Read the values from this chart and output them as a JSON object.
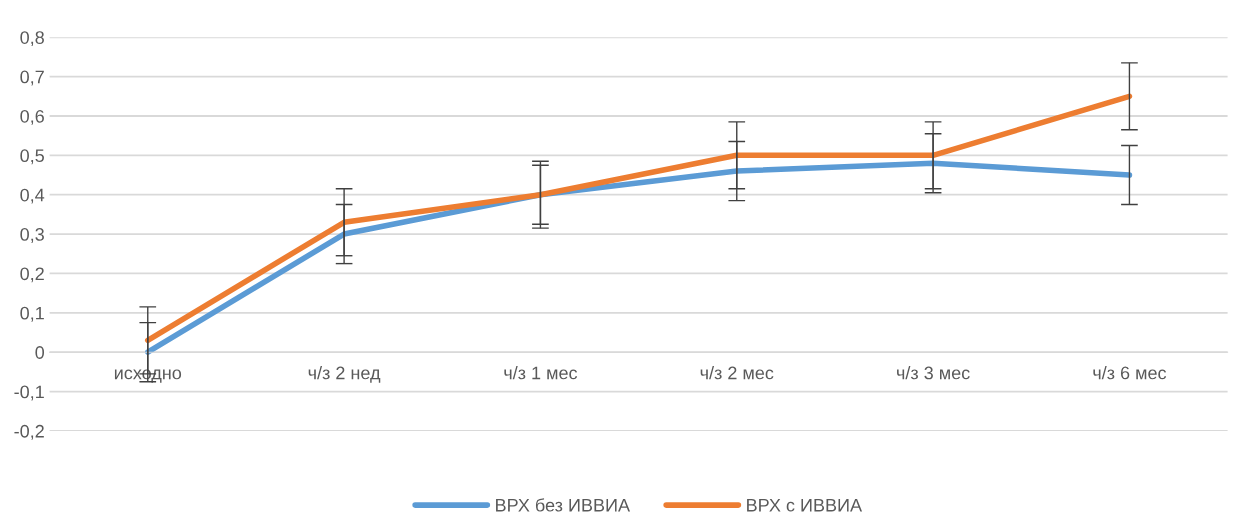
{
  "chart_data": {
    "type": "line",
    "categories": [
      "исходно",
      "ч/з 2 нед",
      "ч/з 1 мес",
      "ч/з 2 мес",
      "ч/з 3 мес",
      "ч/з 6 мес"
    ],
    "series": [
      {
        "name": "ВРХ без ИВВИА",
        "color": "#5b9bd5",
        "values": [
          0,
          0.3,
          0.4,
          0.46,
          0.48,
          0.45
        ],
        "errors": [
          0.075,
          0.075,
          0.075,
          0.075,
          0.075,
          0.075
        ]
      },
      {
        "name": "ВРХ с ИВВИА",
        "color": "#ed7d31",
        "values": [
          0.03,
          0.33,
          0.4,
          0.5,
          0.5,
          0.65
        ],
        "errors": [
          0.085,
          0.085,
          0.085,
          0.085,
          0.085,
          0.085
        ]
      }
    ],
    "ylim": [
      -0.2,
      0.8
    ],
    "yticks": [
      {
        "value": -0.2,
        "label": "-0,2"
      },
      {
        "value": -0.1,
        "label": "-0,1"
      },
      {
        "value": 0,
        "label": "0"
      },
      {
        "value": 0.1,
        "label": "0,1"
      },
      {
        "value": 0.2,
        "label": "0,2"
      },
      {
        "value": 0.3,
        "label": "0,3"
      },
      {
        "value": 0.4,
        "label": "0,4"
      },
      {
        "value": 0.5,
        "label": "0,5"
      },
      {
        "value": 0.6,
        "label": "0,6"
      },
      {
        "value": 0.7,
        "label": "0,7"
      },
      {
        "value": 0.8,
        "label": "0,8"
      }
    ],
    "grid": "y",
    "legend": "bottom",
    "marker": "none",
    "line_style": "solid"
  }
}
